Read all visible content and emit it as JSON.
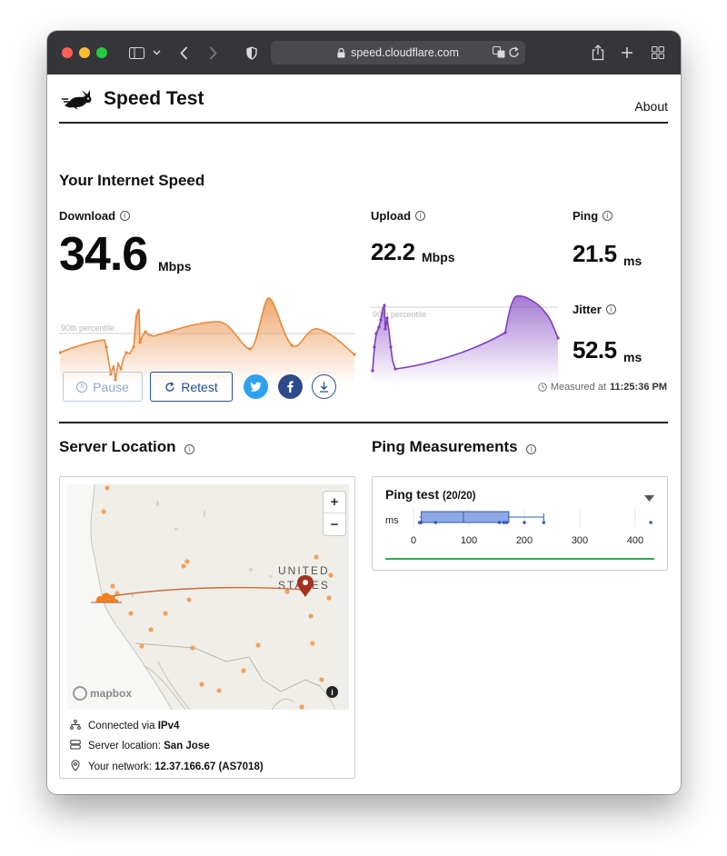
{
  "browser": {
    "url": "speed.cloudflare.com"
  },
  "header": {
    "title": "Speed Test",
    "about_label": "About"
  },
  "section": {
    "title": "Your Internet Speed"
  },
  "download": {
    "label": "Download",
    "value": "34.6",
    "unit": "Mbps",
    "percentile_label": "90th percentile",
    "color": "#e8893a"
  },
  "upload": {
    "label": "Upload",
    "value": "22.2",
    "unit": "Mbps",
    "percentile_label": "90th percentile",
    "color": "#7f3fbf"
  },
  "ping": {
    "label": "Ping",
    "value": "21.5",
    "unit": "ms"
  },
  "jitter": {
    "label": "Jitter",
    "value": "52.5",
    "unit": "ms"
  },
  "controls": {
    "pause_label": "Pause",
    "retest_label": "Retest",
    "measured_label": "Measured at",
    "measured_time": "11:25:36 PM"
  },
  "server": {
    "title": "Server Location",
    "map_label_line1": "UNITED",
    "map_label_line2": "STATES",
    "attribution": "mapbox",
    "connected_label": "Connected via",
    "connected_value": "IPv4",
    "location_label": "Server location:",
    "location_value": "San Jose",
    "network_label": "Your network:",
    "network_value": "12.37.166.67 (AS7018)"
  },
  "ping_measurements": {
    "title": "Ping Measurements",
    "test_label": "Ping test",
    "test_count": "(20/20)",
    "unit_label": "ms",
    "ticks": [
      "0",
      "100",
      "200",
      "300",
      "400"
    ],
    "box": {
      "min": 11,
      "q1": 14,
      "median": 90,
      "q3": 172,
      "max": 235
    },
    "outliers": [
      11,
      12,
      14,
      40,
      155,
      163,
      168,
      200,
      235,
      428
    ]
  }
}
